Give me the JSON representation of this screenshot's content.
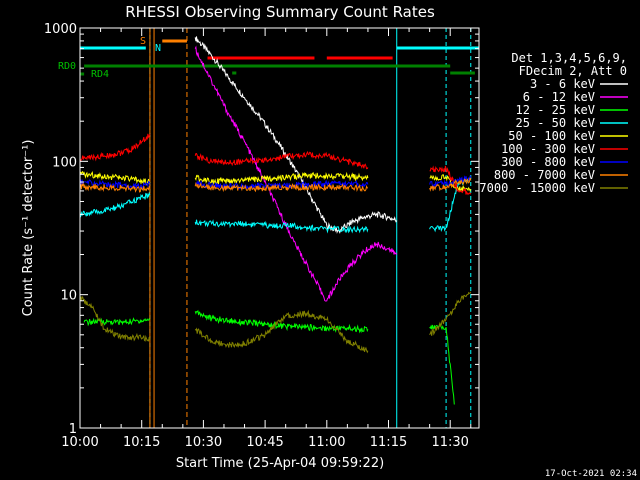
{
  "chart_data": {
    "type": "line",
    "title": "RHESSI Observing Summary Count Rates",
    "xlabel": "Start Time (25-Apr-04 09:59:22)",
    "ylabel": "Count Rate (s⁻¹ detector⁻¹)",
    "y_scale": "log",
    "ylim": [
      1,
      1000
    ],
    "xlim": [
      "10:00",
      "11:37"
    ],
    "x_ticks": [
      "10:00",
      "10:15",
      "10:30",
      "10:45",
      "11:00",
      "11:15",
      "11:30"
    ],
    "y_ticks": [
      {
        "value": 1,
        "label": "1"
      },
      {
        "value": 10,
        "label": "10"
      },
      {
        "value": 100,
        "label": "100"
      },
      {
        "value": 1000,
        "label": "1000"
      }
    ],
    "legend_header": [
      "Det 1,3,4,5,6,9,",
      "FDecim 2, Att 0"
    ],
    "legend_position": "right",
    "timestamp": "17-Oct-2021 02:34",
    "flag_labels": {
      "rd0": "RD0",
      "rd4": "RD4",
      "saa": "S",
      "night": "N"
    },
    "series": [
      {
        "name": "3 - 6 keV",
        "color": "#ffffff",
        "x": [
          "10:28",
          "10:32",
          "10:36",
          "10:40",
          "10:44",
          "10:48",
          "10:52",
          "10:56",
          "11:00",
          "11:03",
          "11:06",
          "11:09",
          "11:12",
          "11:15",
          "11:17"
        ],
        "values": [
          850,
          620,
          430,
          300,
          210,
          140,
          90,
          55,
          33,
          30,
          35,
          38,
          40,
          38,
          36
        ]
      },
      {
        "name": "6 - 12 keV",
        "color": "#ff00ff",
        "x": [
          "10:28",
          "10:32",
          "10:36",
          "10:40",
          "10:44",
          "10:48",
          "10:52",
          "10:56",
          "10:59",
          "11:00",
          "11:03",
          "11:06",
          "11:09",
          "11:12",
          "11:15",
          "11:17"
        ],
        "values": [
          700,
          400,
          230,
          140,
          80,
          45,
          25,
          15,
          10,
          9,
          13,
          17,
          21,
          24,
          22,
          20
        ]
      },
      {
        "name": "12 - 25 keV",
        "color": "#00ff00",
        "x": [
          "10:01",
          "10:05",
          "10:10",
          "10:15",
          "10:17",
          "10:28",
          "10:32",
          "10:36",
          "10:40",
          "10:45",
          "10:50",
          "10:55",
          "11:00",
          "11:05",
          "11:10",
          "11:17",
          "11:25",
          "11:29",
          "11:31"
        ],
        "values": [
          6.2,
          6.3,
          6.2,
          6.4,
          6.5,
          7.5,
          6.6,
          6.4,
          6.2,
          6.0,
          5.8,
          5.7,
          5.6,
          5.6,
          5.5,
          5.6,
          5.7,
          5.7,
          1.5
        ]
      },
      {
        "name": "25 - 50 keV",
        "color": "#00ffff",
        "x": [
          "10:00",
          "10:05",
          "10:10",
          "10:14",
          "10:17",
          "10:28",
          "10:32",
          "10:36",
          "10:40",
          "10:45",
          "10:50",
          "10:55",
          "11:00",
          "11:05",
          "11:10",
          "11:17",
          "11:25",
          "11:29",
          "11:32",
          "11:35"
        ],
        "values": [
          40,
          42,
          46,
          52,
          56,
          35,
          34,
          34,
          34,
          33,
          33,
          32,
          31,
          31,
          31,
          30,
          31,
          32,
          70,
          72
        ]
      },
      {
        "name": "50 - 100 keV",
        "color": "#ffff00",
        "x": [
          "10:00",
          "10:05",
          "10:10",
          "10:14",
          "10:17",
          "10:28",
          "10:32",
          "10:36",
          "10:40",
          "10:45",
          "10:50",
          "10:55",
          "11:00",
          "11:05",
          "11:10",
          "11:17",
          "11:25",
          "11:29",
          "11:32",
          "11:35"
        ],
        "values": [
          80,
          78,
          75,
          72,
          70,
          75,
          72,
          70,
          72,
          74,
          76,
          78,
          78,
          77,
          75,
          74,
          75,
          76,
          62,
          62
        ]
      },
      {
        "name": "100 - 300 keV",
        "color": "#ff0000",
        "x": [
          "10:00",
          "10:04",
          "10:08",
          "10:12",
          "10:15",
          "10:17",
          "10:28",
          "10:32",
          "10:36",
          "10:40",
          "10:45",
          "10:50",
          "10:55",
          "11:00",
          "11:05",
          "11:10",
          "11:17",
          "11:25",
          "11:29",
          "11:32",
          "11:35"
        ],
        "values": [
          105,
          108,
          112,
          120,
          140,
          160,
          110,
          100,
          98,
          100,
          102,
          108,
          112,
          110,
          100,
          90,
          82,
          85,
          88,
          60,
          58
        ]
      },
      {
        "name": "300 - 800 keV",
        "color": "#0000ff",
        "x": [
          "10:00",
          "10:05",
          "10:10",
          "10:15",
          "10:17",
          "10:28",
          "10:32",
          "10:36",
          "10:40",
          "10:45",
          "10:50",
          "10:55",
          "11:00",
          "11:05",
          "11:10",
          "11:17",
          "11:25",
          "11:29",
          "11:32",
          "11:35"
        ],
        "values": [
          70,
          68,
          66,
          65,
          68,
          68,
          66,
          65,
          65,
          66,
          66,
          67,
          68,
          68,
          67,
          66,
          67,
          68,
          72,
          75
        ]
      },
      {
        "name": "800 - 7000 keV",
        "color": "#ff8000",
        "x": [
          "10:00",
          "10:05",
          "10:10",
          "10:15",
          "10:17",
          "10:28",
          "10:32",
          "10:36",
          "10:40",
          "10:45",
          "10:50",
          "10:55",
          "11:00",
          "11:05",
          "11:10",
          "11:17",
          "11:25",
          "11:29",
          "11:32",
          "11:35"
        ],
        "values": [
          65,
          64,
          63,
          62,
          65,
          65,
          64,
          63,
          63,
          63,
          64,
          64,
          64,
          64,
          63,
          62,
          63,
          64,
          70,
          72
        ]
      },
      {
        "name": "7000 - 15000 keV",
        "color": "#808000",
        "x": [
          "10:00",
          "10:03",
          "10:06",
          "10:10",
          "10:14",
          "10:17",
          "10:28",
          "10:32",
          "10:36",
          "10:40",
          "10:45",
          "10:50",
          "10:55",
          "11:00",
          "11:05",
          "11:10",
          "11:17",
          "11:25",
          "11:29",
          "11:32",
          "11:35"
        ],
        "values": [
          9.5,
          8.0,
          5.5,
          4.8,
          4.8,
          4.6,
          5.5,
          4.5,
          4.2,
          4.3,
          5.0,
          7.0,
          7.2,
          6.5,
          4.5,
          3.8,
          4.0,
          5.0,
          6.5,
          9.0,
          10.5
        ]
      }
    ]
  }
}
